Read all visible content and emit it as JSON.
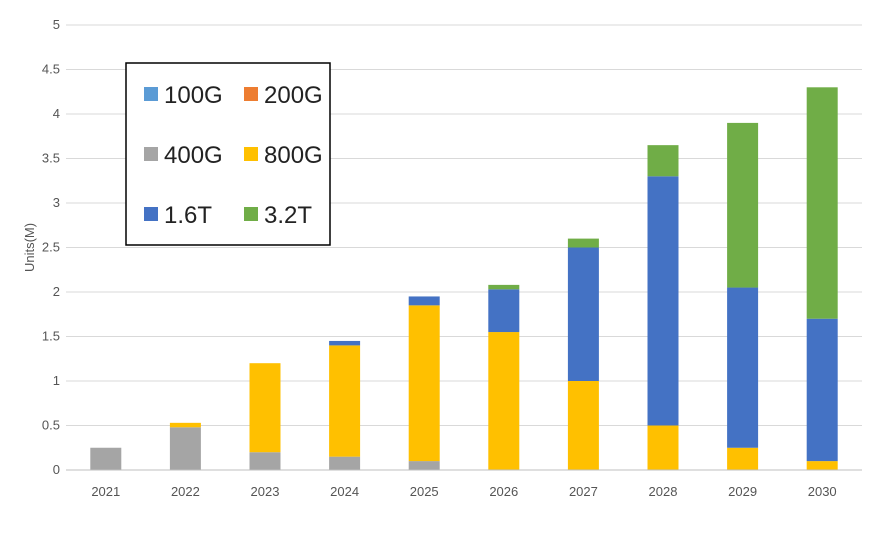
{
  "chart_data": {
    "type": "bar",
    "stacked": true,
    "categories": [
      "2021",
      "2022",
      "2023",
      "2024",
      "2025",
      "2026",
      "2027",
      "2028",
      "2029",
      "2030"
    ],
    "series": [
      {
        "name": "100G",
        "color": "#5b9bd5",
        "values": [
          0,
          0,
          0,
          0,
          0,
          0,
          0,
          0,
          0,
          0
        ]
      },
      {
        "name": "200G",
        "color": "#ed7d31",
        "values": [
          0,
          0,
          0,
          0,
          0,
          0,
          0,
          0,
          0,
          0
        ]
      },
      {
        "name": "400G",
        "color": "#a5a5a5",
        "values": [
          0.25,
          0.48,
          0.2,
          0.15,
          0.1,
          0,
          0,
          0,
          0,
          0
        ]
      },
      {
        "name": "800G",
        "color": "#ffc000",
        "values": [
          0,
          0.05,
          1.0,
          1.25,
          1.75,
          1.55,
          1.0,
          0.5,
          0.25,
          0.1
        ]
      },
      {
        "name": "1.6T",
        "color": "#4472c4",
        "values": [
          0,
          0,
          0,
          0.05,
          0.1,
          0.48,
          1.5,
          2.8,
          1.8,
          1.6
        ]
      },
      {
        "name": "3.2T",
        "color": "#70ad47",
        "values": [
          0,
          0,
          0,
          0,
          0,
          0.05,
          0.1,
          0.35,
          1.85,
          2.6
        ]
      }
    ],
    "title": "",
    "xlabel": "",
    "ylabel": "Units(M)",
    "ylim": [
      0,
      5
    ],
    "yticks": [
      "0",
      "0.5",
      "1",
      "1.5",
      "2",
      "2.5",
      "3",
      "3.5",
      "4",
      "4.5",
      "5"
    ],
    "grid": true,
    "legend_placement": "top-left"
  }
}
